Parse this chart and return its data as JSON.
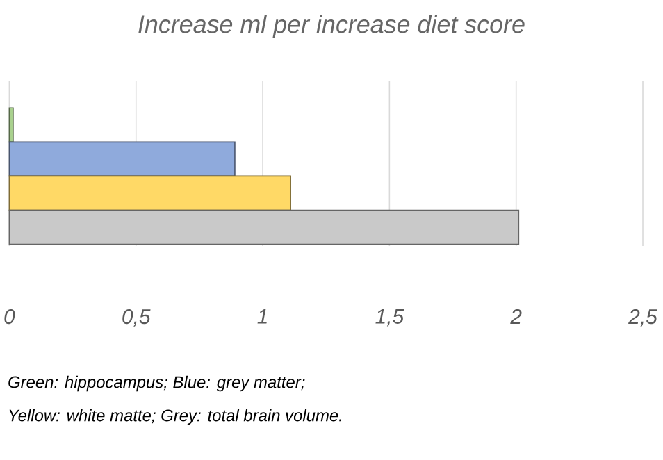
{
  "chart_data": {
    "type": "bar",
    "orientation": "horizontal",
    "title": "Increase ml per increase diet score",
    "categories": [
      null,
      null,
      null,
      null
    ],
    "values": [
      0.015,
      0.89,
      1.11,
      2.01
    ],
    "colors": [
      "#a9d18e",
      "#8faadc",
      "#ffd966",
      "#c9c9c9"
    ],
    "xlim": [
      0,
      2.5
    ],
    "xticks": [
      0,
      {
        "value": 0.5,
        "label": "0,5"
      },
      1,
      {
        "value": 1.5,
        "label": "1,5"
      },
      2,
      {
        "value": 2.5,
        "label": "2,5"
      }
    ],
    "grid": "x",
    "annotations": [
      "Green: hippocampus; Blue: grey matter;",
      "Yellow: white matte; Grey: total brain volume."
    ]
  }
}
